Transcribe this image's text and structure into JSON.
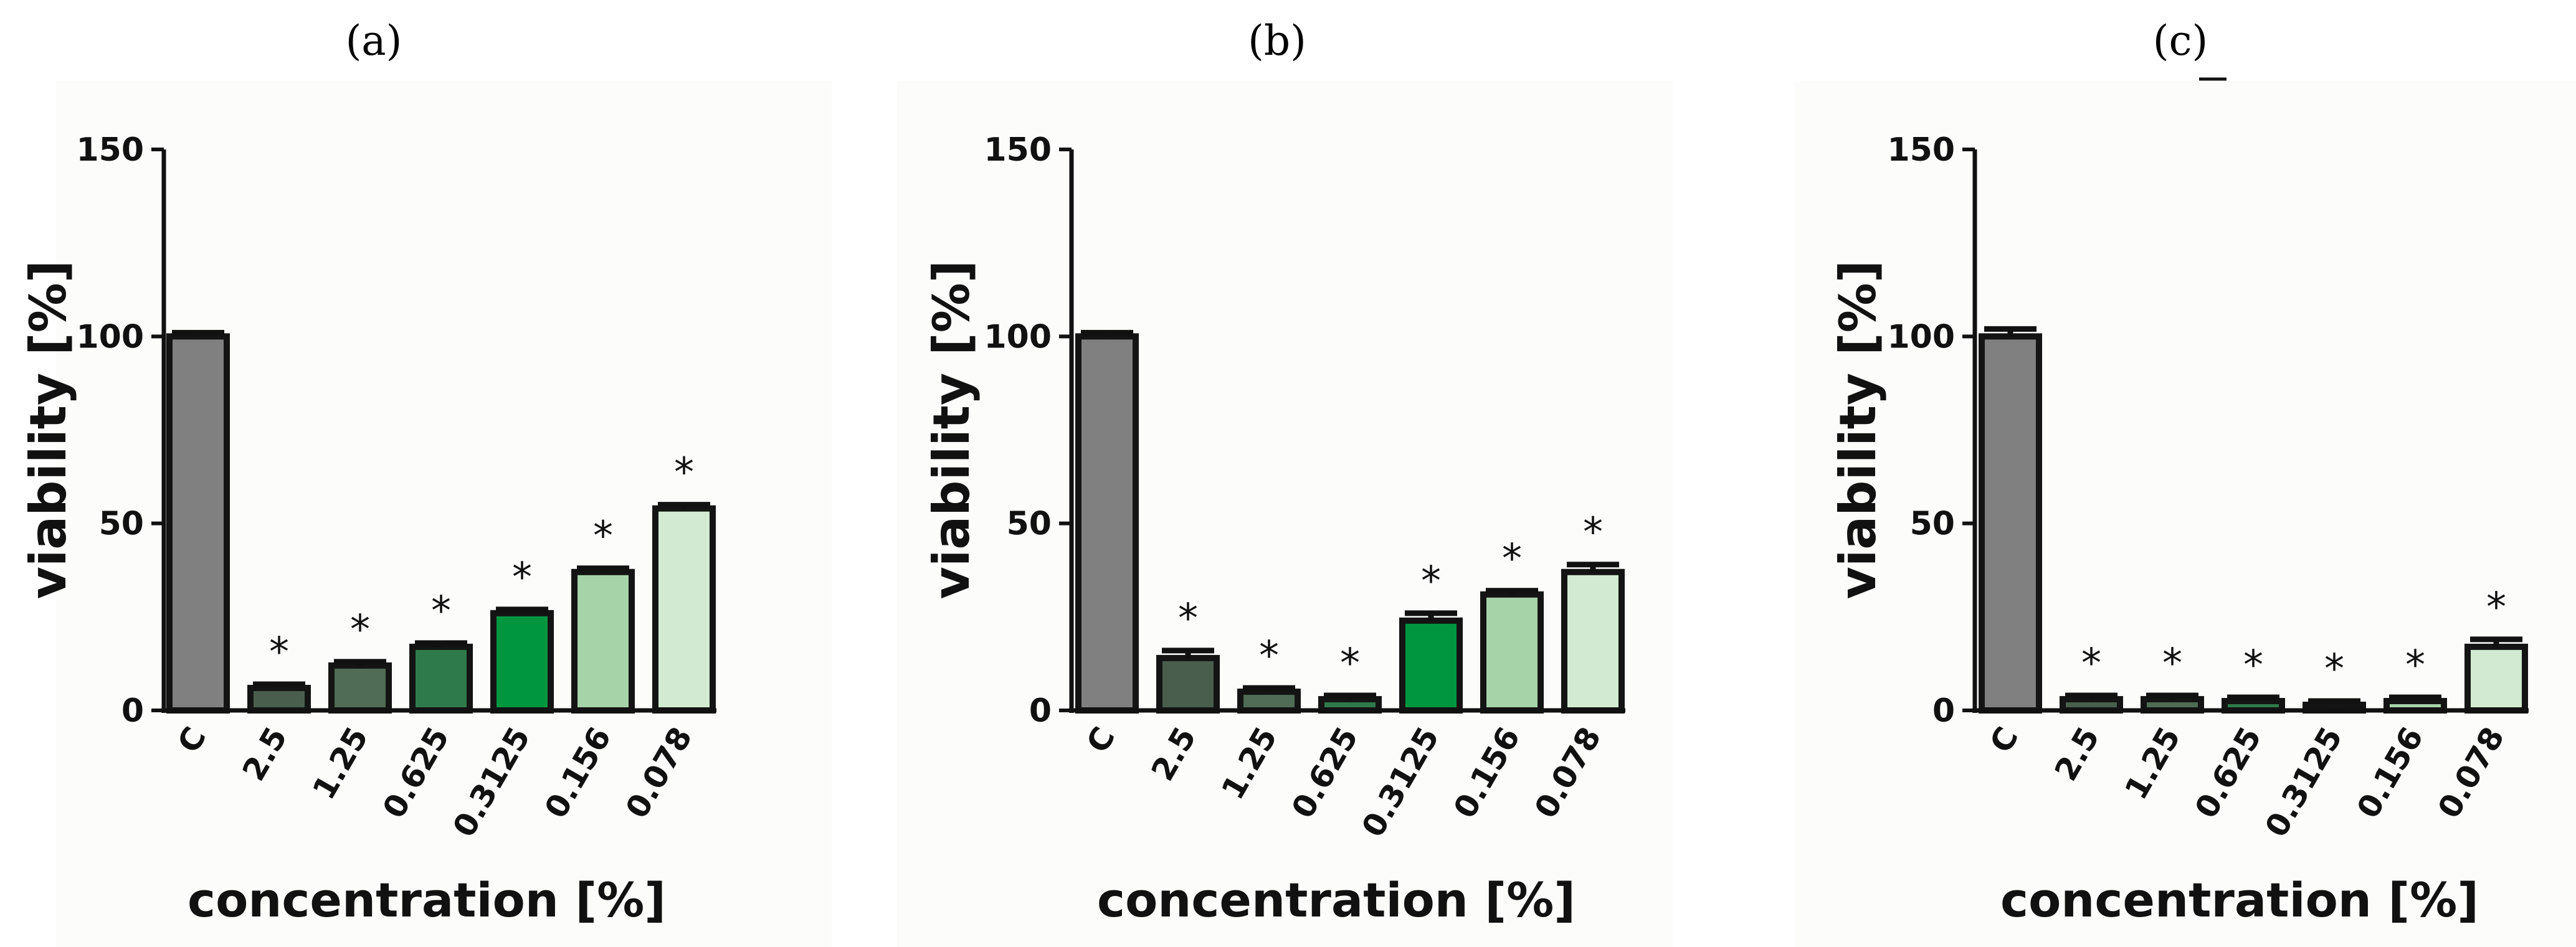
{
  "chart_data": [
    {
      "type": "bar",
      "panel_label": "(a)",
      "title": "",
      "xlabel": "concentration [%]",
      "ylabel": "viability [%]",
      "ylim": [
        0,
        150
      ],
      "yticks": [
        0,
        50,
        100,
        150
      ],
      "categories": [
        "C",
        "2.5",
        "1.25",
        "0.625",
        "0.3125",
        "0.156",
        "0.078"
      ],
      "values": [
        100,
        6,
        12,
        17,
        26,
        37,
        54
      ],
      "errors": [
        1,
        1,
        1,
        1,
        1,
        1,
        1
      ],
      "significance": [
        "",
        "*",
        "*",
        "*",
        "*",
        "*",
        "*"
      ],
      "colors": [
        "#808080",
        "#4a5e4e",
        "#506b56",
        "#2f7a4a",
        "#009640",
        "#a7d3a8",
        "#d2ead1"
      ]
    },
    {
      "type": "bar",
      "panel_label": "(b)",
      "title": "",
      "xlabel": "concentration [%]",
      "ylabel": "viability [%]",
      "ylim": [
        0,
        150
      ],
      "yticks": [
        0,
        50,
        100,
        150
      ],
      "categories": [
        "C",
        "2.5",
        "1.25",
        "0.625",
        "0.3125",
        "0.156",
        "0.078"
      ],
      "values": [
        100,
        14,
        5,
        3,
        24,
        31,
        37
      ],
      "errors": [
        1,
        2,
        1,
        1,
        2,
        1,
        2
      ],
      "significance": [
        "",
        "*",
        "*",
        "*",
        "*",
        "*",
        "*"
      ],
      "colors": [
        "#808080",
        "#4a5e4e",
        "#506b56",
        "#2f7a4a",
        "#009640",
        "#a7d3a8",
        "#d2ead1"
      ]
    },
    {
      "type": "bar",
      "panel_label": "(c)",
      "title": "",
      "xlabel": "concentration [%]",
      "ylabel": "viability [%]",
      "ylim": [
        0,
        150
      ],
      "yticks": [
        0,
        50,
        100,
        150
      ],
      "categories": [
        "C",
        "2.5",
        "1.25",
        "0.625",
        "0.3125",
        "0.156",
        "0.078"
      ],
      "values": [
        100,
        3,
        3,
        2.5,
        1.5,
        2.5,
        17
      ],
      "errors": [
        2,
        1,
        1,
        1,
        1,
        1,
        2
      ],
      "significance": [
        "",
        "*",
        "*",
        "*",
        "*",
        "*",
        "*"
      ],
      "colors": [
        "#808080",
        "#4a5e4e",
        "#506b56",
        "#2f7a4a",
        "#009640",
        "#a7d3a8",
        "#d2ead1"
      ]
    }
  ]
}
